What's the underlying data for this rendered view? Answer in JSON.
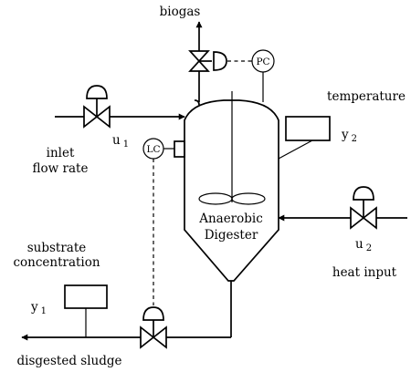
{
  "labels": {
    "biogas": "biogas",
    "temperature": "temperature",
    "inlet": "inlet",
    "flow_rate": "flow rate",
    "substrate": "substrate",
    "concentration": "concentration",
    "heat_input": "heat input",
    "digested_sludge": "disgested sludge",
    "digester_line1": "Anaerobic",
    "digester_line2": "Digester"
  },
  "symbols": {
    "u1": {
      "base": "u",
      "sub": "1"
    },
    "u2": {
      "base": "u",
      "sub": "2"
    },
    "y1": {
      "base": "y",
      "sub": "1"
    },
    "y2": {
      "base": "y",
      "sub": "2"
    }
  },
  "controllers": {
    "pressure": "PC",
    "level": "LC"
  }
}
